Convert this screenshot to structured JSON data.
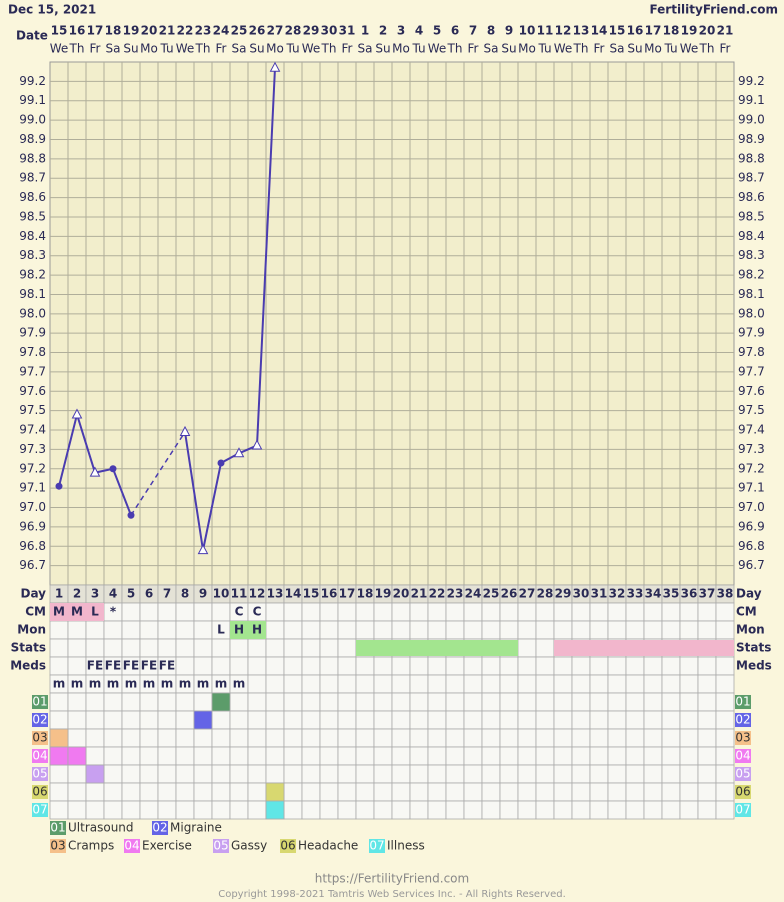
{
  "header": {
    "date": "Dec 15, 2021",
    "site": "FertilityFriend.com",
    "date_label": "Date"
  },
  "chart_data": {
    "type": "line",
    "categories": [
      15,
      16,
      17,
      18,
      19,
      20,
      21,
      22,
      23,
      24,
      25,
      26,
      27,
      28,
      29,
      30,
      31,
      1,
      2,
      3,
      4,
      5,
      6,
      7,
      8,
      9,
      10,
      11,
      12,
      13,
      14,
      15,
      16,
      17,
      18,
      19,
      20,
      21
    ],
    "weekdays": [
      "We",
      "Th",
      "Fr",
      "Sa",
      "Su",
      "Mo",
      "Tu",
      "We",
      "Th",
      "Fr",
      "Sa",
      "Su",
      "Mo",
      "Tu",
      "We",
      "Th",
      "Fr",
      "Sa",
      "Su",
      "Mo",
      "Tu",
      "We",
      "Th",
      "Fr",
      "Sa",
      "Su",
      "Mo",
      "Tu",
      "We",
      "Th",
      "Fr",
      "Sa",
      "Su",
      "Mo",
      "Tu",
      "We",
      "Th",
      "Fr"
    ],
    "values": [
      97.11,
      97.48,
      97.18,
      97.2,
      96.96,
      null,
      null,
      97.39,
      96.78,
      97.23,
      97.28,
      97.32,
      99.27,
      null,
      null,
      null,
      null,
      null,
      null,
      null,
      null,
      null,
      null,
      null,
      null,
      null,
      null,
      null,
      null,
      null,
      null,
      null,
      null,
      null,
      null,
      null,
      null,
      null
    ],
    "markers": [
      "circle",
      "triangle",
      "triangle",
      "circle",
      "circle",
      null,
      null,
      "triangle",
      "triangle",
      "circle",
      "triangle",
      "triangle",
      "triangle",
      null,
      null,
      null,
      null,
      null,
      null,
      null,
      null,
      null,
      null,
      null,
      null,
      null,
      null,
      null,
      null,
      null,
      null,
      null,
      null,
      null,
      null,
      null,
      null,
      null
    ],
    "color": "#4a3cb0",
    "ylim": [
      96.6,
      99.3
    ],
    "yticks": [
      96.7,
      96.8,
      96.9,
      {
        "value": 97,
        "label": "97.0"
      },
      97.1,
      97.2,
      97.3,
      97.4,
      97.5,
      97.6,
      97.7,
      97.8,
      97.9,
      {
        "value": 98,
        "label": "98.0"
      },
      98.1,
      98.2,
      98.3,
      98.4,
      98.5,
      98.6,
      98.7,
      98.8,
      98.9,
      {
        "value": 99,
        "label": "99.0"
      },
      99.1,
      99.2
    ],
    "grid": true
  },
  "table": {
    "row_labels": {
      "day": "Day",
      "cm": "CM",
      "mon": "Mon",
      "stats": "Stats",
      "meds": "Meds"
    },
    "cycle_days": [
      1,
      2,
      3,
      4,
      5,
      6,
      7,
      8,
      9,
      10,
      11,
      12,
      13,
      14,
      15,
      16,
      17,
      18,
      19,
      20,
      21,
      22,
      23,
      24,
      25,
      26,
      27,
      28,
      29,
      30,
      31,
      32,
      33,
      34,
      35,
      36,
      37,
      38
    ],
    "cm": [
      "M",
      "M",
      "L",
      "*",
      null,
      null,
      null,
      null,
      null,
      null,
      "C",
      "C",
      null,
      null,
      null,
      null,
      null,
      null,
      null,
      null,
      null,
      null,
      null,
      null,
      null,
      null,
      null,
      null,
      null,
      null,
      null,
      null,
      null,
      null,
      null,
      null,
      null,
      null
    ],
    "cm_shaded": [
      1,
      2,
      3
    ],
    "cm_shade_color": "#f2b6cc",
    "mon": [
      null,
      null,
      null,
      null,
      null,
      null,
      null,
      null,
      null,
      "L",
      "H",
      "H",
      null,
      null,
      null,
      null,
      null,
      null,
      null,
      null,
      null,
      null,
      null,
      null,
      null,
      null,
      null,
      null,
      null,
      null,
      null,
      null,
      null,
      null,
      null,
      null,
      null,
      null
    ],
    "mon_shaded": [
      11,
      12
    ],
    "mon_shade_color": "#a3e58f",
    "stats": [
      {
        "start": 18,
        "end": 26,
        "color": "#a3e58f"
      },
      {
        "start": 29,
        "end": 38,
        "color": "#f2b6cc"
      }
    ],
    "meds": [
      null,
      null,
      "FE",
      "FE",
      "FE",
      "FE",
      "FE",
      null,
      null,
      null,
      null,
      null,
      null,
      null,
      null,
      null,
      null,
      null,
      null,
      null,
      null,
      null,
      null,
      null,
      null,
      null,
      null,
      null,
      null,
      null,
      null,
      null,
      null,
      null,
      null,
      null,
      null,
      null
    ],
    "meds2": [
      "m",
      "m",
      "m",
      "m",
      "m",
      "m",
      "m",
      "m",
      "m",
      "m",
      "m",
      null,
      null,
      null,
      null,
      null,
      null,
      null,
      null,
      null,
      null,
      null,
      null,
      null,
      null,
      null,
      null,
      null,
      null,
      null,
      null,
      null,
      null,
      null,
      null,
      null,
      null,
      null
    ]
  },
  "symptoms": [
    {
      "code": "01",
      "name": "Ultrasound",
      "color": "#5c9c6a",
      "label_color": "#ffffff",
      "days": [
        10
      ]
    },
    {
      "code": "02",
      "name": "Migraine",
      "color": "#6464e6",
      "label_color": "#ffffff",
      "days": [
        9
      ]
    },
    {
      "code": "03",
      "name": "Cramps",
      "color": "#f5c08a",
      "label_color": "#333333",
      "days": [
        1
      ]
    },
    {
      "code": "04",
      "name": "Exercise",
      "color": "#f07af0",
      "label_color": "#ffffff",
      "days": [
        1,
        2
      ]
    },
    {
      "code": "05",
      "name": "Gassy",
      "color": "#c8a0f0",
      "label_color": "#ffffff",
      "days": [
        3
      ]
    },
    {
      "code": "06",
      "name": "Headache",
      "color": "#d8d870",
      "label_color": "#333333",
      "days": [
        13
      ]
    },
    {
      "code": "07",
      "name": "Illness",
      "color": "#60e6e6",
      "label_color": "#ffffff",
      "days": [
        13
      ]
    }
  ],
  "footer": {
    "url": "https://FertilityFriend.com",
    "copyright": "Copyright 1998-2021 Tamtris Web Services Inc. - All Rights Reserved."
  }
}
